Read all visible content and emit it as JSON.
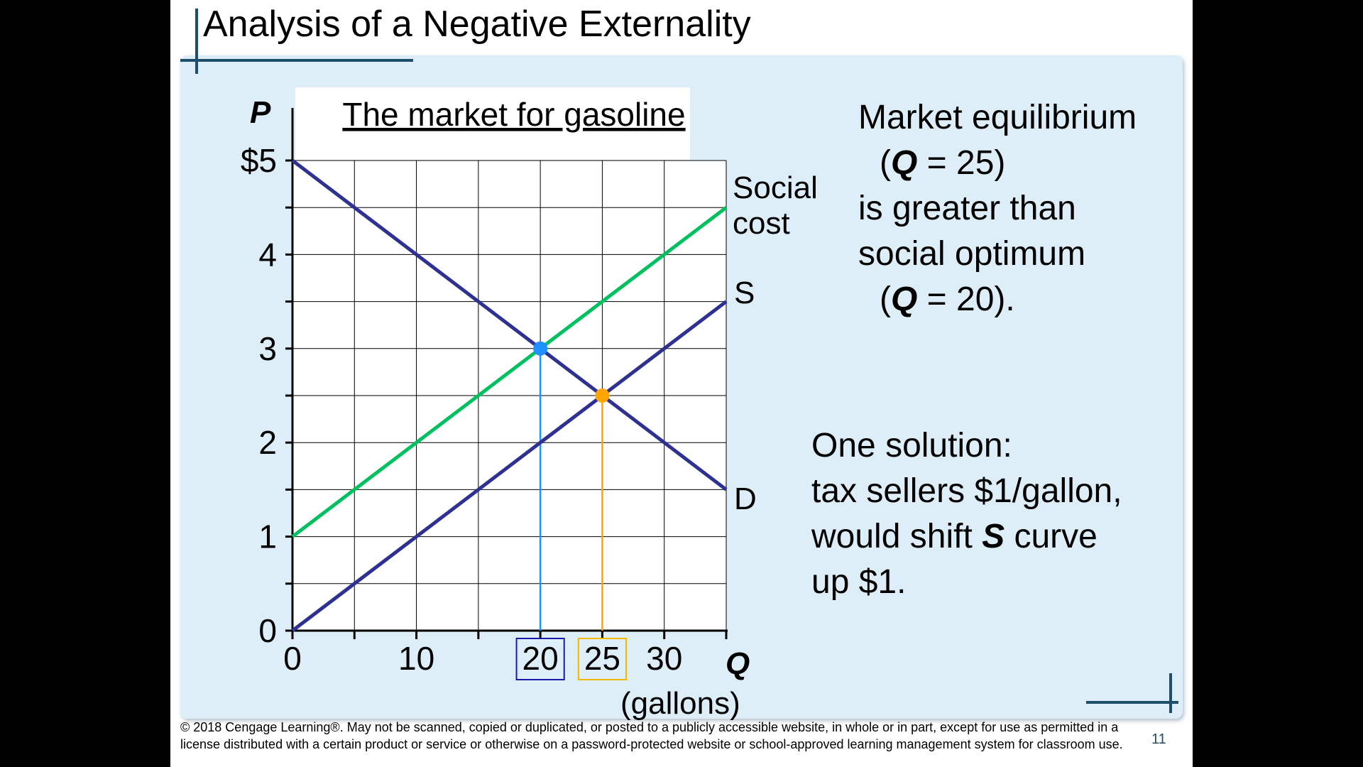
{
  "slide": {
    "title": "Analysis of a Negative Externality",
    "footer": "© 2018 Cengage Learning®. May not be scanned, copied or duplicated, or posted to a publicly accessible website, in whole or in part, except for use as permitted in a license distributed with a certain product or service or otherwise on a password-protected website or school-approved learning management system for classroom use.",
    "page_number": "11",
    "text_block_1": {
      "line1": "Market equilibrium",
      "line2_open": "(",
      "line2_var": "Q",
      "line2_rest": " = 25)",
      "line3": "is greater than",
      "line4": "social optimum",
      "line5_open": "(",
      "line5_var": "Q",
      "line5_rest": " = 20)."
    },
    "text_block_2": {
      "line1": "One solution:",
      "line2": "tax sellers $1/gallon,",
      "line3_pre": "would shift ",
      "line3_var": "S",
      "line3_post": " curve",
      "line4": "up $1."
    }
  },
  "chart_data": {
    "type": "line",
    "title": "The market for gasoline",
    "ylabel": "P",
    "xlabel": "Q",
    "xlabel_unit": "(gallons)",
    "xlim": [
      0,
      35
    ],
    "ylim": [
      0,
      5
    ],
    "x_ticks": [
      0,
      10,
      20,
      25,
      30
    ],
    "x_tick_labels": [
      "0",
      "10",
      "20",
      "25",
      "30"
    ],
    "y_ticks": [
      0,
      1,
      2,
      3,
      4,
      5
    ],
    "y_tick_labels": [
      "0",
      "1",
      "2",
      "3",
      "4",
      "$5"
    ],
    "grid": true,
    "series": [
      {
        "name": "D",
        "color": "#2e3192",
        "points": [
          [
            0,
            5
          ],
          [
            35,
            1.5
          ]
        ]
      },
      {
        "name": "S",
        "color": "#2e3192",
        "points": [
          [
            0,
            0
          ],
          [
            35,
            3.5
          ]
        ]
      },
      {
        "name": "Social cost",
        "color": "#00c060",
        "points": [
          [
            0,
            1
          ],
          [
            35,
            4.5
          ]
        ]
      }
    ],
    "equilibria": [
      {
        "label": "social optimum",
        "x": 20,
        "y": 3,
        "color": "#1e90ff",
        "box_color": "#1a1aa8"
      },
      {
        "label": "market equilibrium",
        "x": 25,
        "y": 2.5,
        "color": "#ffa500",
        "box_color": "#f5b800"
      }
    ]
  }
}
